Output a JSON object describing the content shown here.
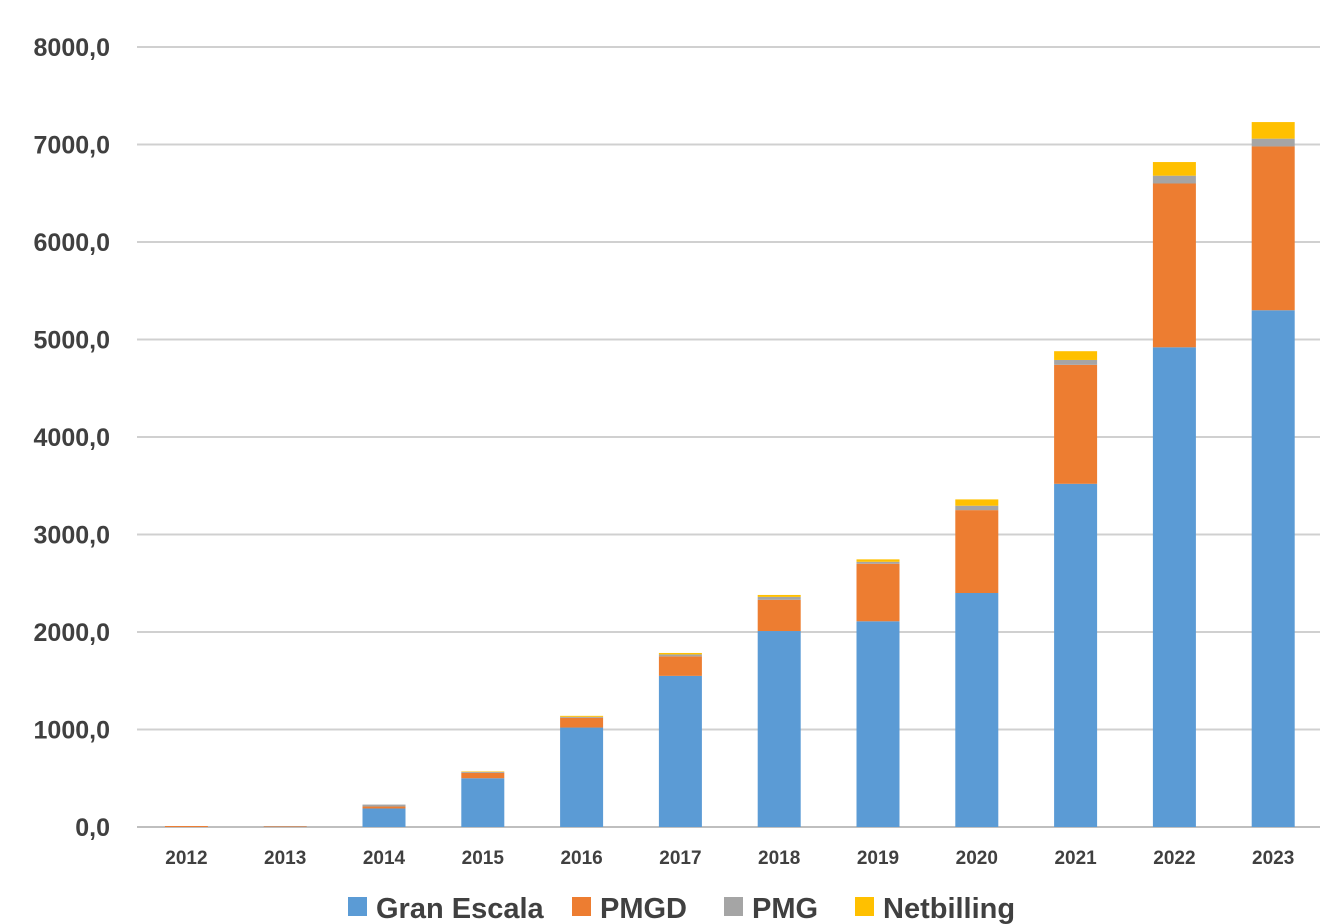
{
  "chart_data": {
    "type": "bar",
    "stacked": true,
    "title": "",
    "xlabel": "",
    "ylabel": "",
    "ylim": [
      0,
      8000
    ],
    "y_ticks": [
      "0,0",
      "1000,0",
      "2000,0",
      "3000,0",
      "4000,0",
      "5000,0",
      "6000,0",
      "7000,0",
      "8000,0"
    ],
    "y_tick_values": [
      0,
      1000,
      2000,
      3000,
      4000,
      5000,
      6000,
      7000,
      8000
    ],
    "grid": true,
    "legend_position": "bottom",
    "categories": [
      "2012",
      "2013",
      "2014",
      "2015",
      "2016",
      "2017",
      "2018",
      "2019",
      "2020",
      "2021",
      "2022",
      "2023"
    ],
    "series": [
      {
        "name": "Gran Escala",
        "color": "#5B9BD5",
        "values": [
          0,
          0,
          190,
          500,
          1020,
          1550,
          2010,
          2110,
          2400,
          3520,
          4920,
          5300
        ]
      },
      {
        "name": "PMGD",
        "color": "#ED7D31",
        "values": [
          10,
          5,
          20,
          55,
          100,
          200,
          320,
          590,
          850,
          1220,
          1680,
          1680
        ]
      },
      {
        "name": "PMG",
        "color": "#A5A5A5",
        "values": [
          0,
          5,
          20,
          10,
          10,
          20,
          30,
          20,
          45,
          50,
          80,
          80
        ]
      },
      {
        "name": "Netbilling",
        "color": "#FFC000",
        "values": [
          0,
          0,
          0,
          5,
          10,
          15,
          20,
          25,
          65,
          90,
          140,
          170
        ]
      }
    ]
  }
}
